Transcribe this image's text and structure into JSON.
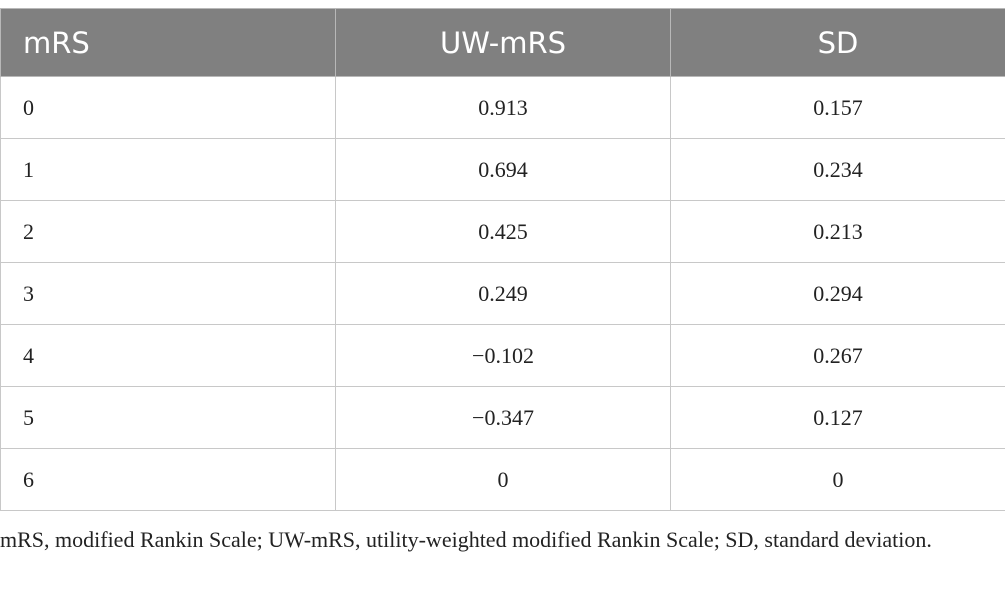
{
  "table": {
    "columns": [
      "mRS",
      "UW-mRS",
      "SD"
    ],
    "rows": [
      [
        "0",
        "0.913",
        "0.157"
      ],
      [
        "1",
        "0.694",
        "0.234"
      ],
      [
        "2",
        "0.425",
        "0.213"
      ],
      [
        "3",
        "0.249",
        "0.294"
      ],
      [
        "4",
        "−0.102",
        "0.267"
      ],
      [
        "5",
        "−0.347",
        "0.127"
      ],
      [
        "6",
        "0",
        "0"
      ]
    ],
    "footnote": "mRS, modified Rankin Scale; UW-mRS, utility-weighted modified Rankin Scale; SD, standard deviation."
  }
}
